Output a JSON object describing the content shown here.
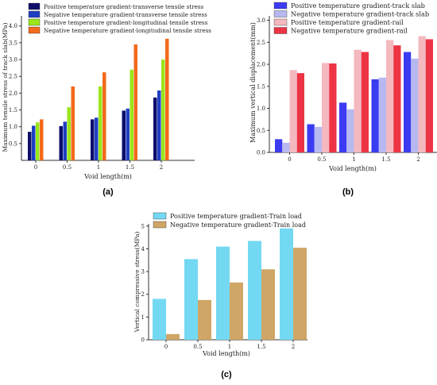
{
  "panels": [
    {
      "caption": "(a)",
      "chart_data": {
        "type": "bar",
        "title": "",
        "xlabel": "Void length(m)",
        "ylabel": "Maximum tensile stress of track slab(MPa)",
        "categories": [
          "0",
          "0.5",
          "1",
          "1.5",
          "2"
        ],
        "ylim": [
          0,
          4.3
        ],
        "yticks": [
          "0.5",
          "1.0",
          "1.5",
          "2.0",
          "2.5",
          "3.0",
          "3.5",
          "4.0"
        ],
        "ytick_values": [
          0.5,
          1.0,
          1.5,
          2.0,
          2.5,
          3.0,
          3.5,
          4.0
        ],
        "grid": false,
        "legend_position": "top-left",
        "series": [
          {
            "name": "Positive temperature gradient-transverse tensile stress",
            "color": "#0d0d6b",
            "values": [
              0.85,
              1.02,
              1.22,
              1.48,
              1.87
            ]
          },
          {
            "name": "Negative temperature gradient-transverse tensile stress",
            "color": "#1f3fc2",
            "values": [
              1.03,
              1.15,
              1.27,
              1.54,
              2.08
            ]
          },
          {
            "name": "Positive temperature gradient-longitudinal tensile stress",
            "color": "#99e619",
            "values": [
              1.13,
              1.58,
              2.2,
              2.7,
              3.0
            ]
          },
          {
            "name": "Negative temperature gradient-longitudinal tensile stress",
            "color": "#f26a1b",
            "values": [
              1.22,
              2.2,
              2.62,
              3.45,
              3.62
            ]
          }
        ]
      }
    },
    {
      "caption": "(b)",
      "chart_data": {
        "type": "bar",
        "title": "",
        "xlabel": "Void length(m)",
        "ylabel": "Maximum vertical displacement(mm)",
        "categories": [
          "0",
          "0.5",
          "1",
          "1.5",
          "2"
        ],
        "ylim": [
          0,
          3.1
        ],
        "yticks": [
          "0.0",
          "0.5",
          "1.0",
          "1.5",
          "2.0",
          "2.5",
          "3.0"
        ],
        "ytick_values": [
          0,
          0.5,
          1.0,
          1.5,
          2.0,
          2.5,
          3.0
        ],
        "grid": false,
        "legend_position": "top",
        "series": [
          {
            "name": "Positive temperature gradient-track slab",
            "color": "#3b3bf2",
            "values": [
              0.3,
              0.64,
              1.13,
              1.66,
              2.28
            ]
          },
          {
            "name": "Negative temperature gradient-track slab",
            "color": "#b8b8f0",
            "values": [
              0.22,
              0.58,
              0.98,
              1.7,
              2.13
            ]
          },
          {
            "name": "Positive temperature gradient-rail",
            "color": "#f4b8bf",
            "values": [
              1.87,
              2.03,
              2.33,
              2.55,
              2.64
            ]
          },
          {
            "name": "Negative temperature gradient-rail",
            "color": "#ec3444",
            "values": [
              1.8,
              2.02,
              2.28,
              2.43,
              2.57
            ]
          }
        ]
      }
    },
    {
      "caption": "(c)",
      "chart_data": {
        "type": "bar",
        "title": "",
        "xlabel": "Void length(m)",
        "ylabel": "Vertical compressive stress(MPa)",
        "categories": [
          "0",
          "0.5",
          "1",
          "1.5",
          "2"
        ],
        "ylim": [
          0,
          5.1
        ],
        "yticks": [
          "0",
          "1",
          "2",
          "3",
          "4",
          "5"
        ],
        "ytick_values": [
          0,
          1,
          2,
          3,
          4,
          5
        ],
        "grid": false,
        "legend_position": "top",
        "series": [
          {
            "name": "Positive temperature gradient-Train load",
            "color": "#73d9f2",
            "values": [
              1.8,
              3.55,
              4.1,
              4.35,
              4.9
            ]
          },
          {
            "name": "Negative temperature gradient-Train load",
            "color": "#cfa666",
            "values": [
              0.25,
              1.75,
              2.52,
              3.1,
              4.05
            ]
          }
        ]
      }
    }
  ]
}
